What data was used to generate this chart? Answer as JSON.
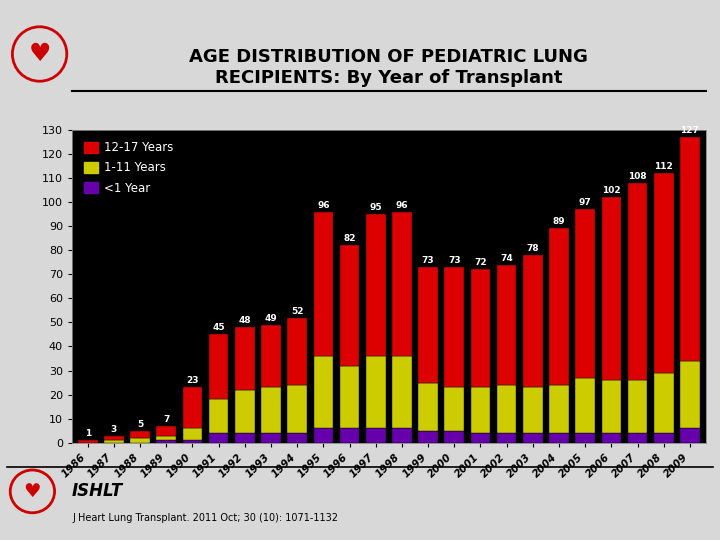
{
  "title_line1": "AGE DISTRIBUTION OF PEDIATRIC LUNG",
  "title_line2": "RECIPIENTS: By Year of Transplant",
  "years": [
    "1986",
    "1987",
    "1988",
    "1989",
    "1990",
    "1991",
    "1992",
    "1993",
    "1994",
    "1995",
    "1996",
    "1997",
    "1998",
    "1999",
    "2000",
    "2001",
    "2002",
    "2003",
    "2004",
    "2005",
    "2006",
    "2007",
    "2008",
    "2009"
  ],
  "totals": [
    1,
    3,
    5,
    7,
    23,
    45,
    48,
    49,
    52,
    96,
    82,
    95,
    96,
    73,
    73,
    72,
    74,
    78,
    89,
    97,
    102,
    108,
    112,
    127
  ],
  "red_12_17": [
    1,
    2,
    3,
    4,
    17,
    27,
    26,
    26,
    28,
    60,
    50,
    59,
    60,
    48,
    50,
    49,
    50,
    55,
    65,
    70,
    76,
    82,
    83,
    93
  ],
  "yellow_1_11": [
    0,
    1,
    2,
    2,
    5,
    14,
    18,
    19,
    20,
    30,
    26,
    30,
    30,
    20,
    18,
    19,
    20,
    19,
    20,
    23,
    22,
    22,
    25,
    28
  ],
  "purple_lt1": [
    0,
    0,
    0,
    1,
    1,
    4,
    4,
    4,
    4,
    6,
    6,
    6,
    6,
    5,
    5,
    4,
    4,
    4,
    4,
    4,
    4,
    4,
    4,
    6
  ],
  "color_red": "#dd0000",
  "color_yellow": "#cccc00",
  "color_purple": "#6600aa",
  "bg_color": "#000000",
  "text_color": "#ffffff",
  "bar_edge_color": "#000000",
  "ylim": [
    0,
    130
  ],
  "yticks": [
    0,
    10,
    20,
    30,
    40,
    50,
    60,
    70,
    80,
    90,
    100,
    110,
    120,
    130
  ],
  "footer_text": "J Heart Lung Transplant. 2011 Oct; 30 (10): 1071-1132",
  "ishlt_text": "ISHLT",
  "fig_bg": "#d8d8d8"
}
